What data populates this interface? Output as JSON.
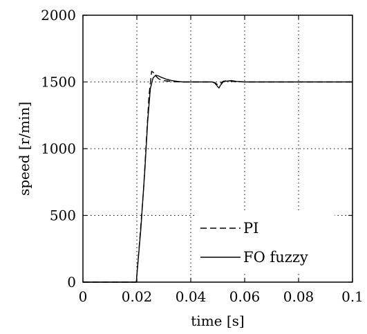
{
  "chart_data": {
    "type": "line",
    "title": "",
    "xlabel": "time [s]",
    "ylabel": "speed [r/min]",
    "xlim": [
      0,
      0.1
    ],
    "ylim": [
      0,
      2000
    ],
    "grid": true,
    "legend_position": "bottom-right",
    "x_tick_labels": [
      "0",
      "0.02",
      "0.04",
      "0.06",
      "0.08",
      "0.1"
    ],
    "y_tick_labels": [
      "0",
      "500",
      "1000",
      "1500",
      "2000"
    ],
    "series": [
      {
        "name": "PI",
        "style": "dashed",
        "color": "#000000",
        "x": [
          0.0,
          0.0195,
          0.0198,
          0.021,
          0.0225,
          0.0235,
          0.0245,
          0.0255,
          0.0262,
          0.027,
          0.028,
          0.029,
          0.03,
          0.032,
          0.034,
          0.036,
          0.04,
          0.045,
          0.048,
          0.049,
          0.05,
          0.051,
          0.052,
          0.054,
          0.056,
          0.06,
          0.08,
          0.1
        ],
        "y": [
          0,
          0,
          0,
          300,
          700,
          1050,
          1400,
          1580,
          1570,
          1545,
          1525,
          1515,
          1510,
          1505,
          1502,
          1500,
          1500,
          1500,
          1500,
          1495,
          1478,
          1490,
          1505,
          1510,
          1503,
          1500,
          1500,
          1500
        ]
      },
      {
        "name": "FO fuzzy",
        "style": "solid",
        "color": "#000000",
        "x": [
          0.0,
          0.0195,
          0.0198,
          0.0215,
          0.023,
          0.024,
          0.025,
          0.026,
          0.027,
          0.028,
          0.029,
          0.031,
          0.033,
          0.035,
          0.037,
          0.04,
          0.045,
          0.048,
          0.049,
          0.05,
          0.0505,
          0.051,
          0.052,
          0.053,
          0.055,
          0.057,
          0.06,
          0.08,
          0.1
        ],
        "y": [
          0,
          0,
          0,
          400,
          850,
          1200,
          1450,
          1530,
          1550,
          1545,
          1535,
          1520,
          1510,
          1504,
          1500,
          1500,
          1500,
          1500,
          1490,
          1465,
          1455,
          1475,
          1500,
          1505,
          1510,
          1504,
          1500,
          1500,
          1500
        ]
      }
    ]
  }
}
